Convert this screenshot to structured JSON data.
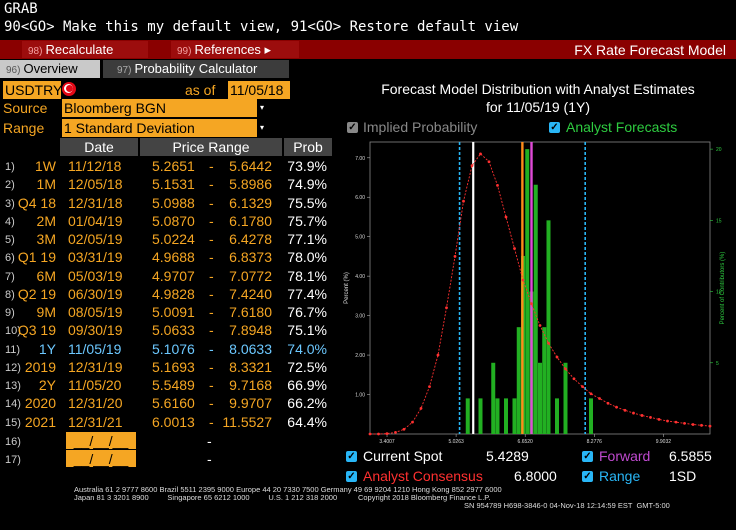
{
  "header": {
    "line1": "GRAB",
    "line2": "90<GO> Make this my default view, 91<GO> Restore default view"
  },
  "toolbar": {
    "recalc_num": "98)",
    "recalc_label": "Recalculate",
    "refs_num": "99)",
    "refs_label": "References ▸",
    "title": "FX Rate Forecast Model"
  },
  "tabs": [
    {
      "num": "96)",
      "label": "Overview"
    },
    {
      "num": "97)",
      "label": "Probability Calculator"
    }
  ],
  "controls": {
    "pair": "USDTRY",
    "as_of_label": "as of",
    "as_of_date": "11/05/18",
    "source_label": "Source",
    "source_value": "Bloomberg BGN",
    "range_label": "Range",
    "range_value": "1 Standard Deviation"
  },
  "table": {
    "headers": [
      "Date",
      "Price Range",
      "Prob"
    ],
    "rows": [
      {
        "idx": "1)",
        "tenor": "1W",
        "date": "11/12/18",
        "low": "5.2651",
        "high": "5.6442",
        "prob": "73.9%"
      },
      {
        "idx": "2)",
        "tenor": "1M",
        "date": "12/05/18",
        "low": "5.1531",
        "high": "5.8986",
        "prob": "74.9%"
      },
      {
        "idx": "3)",
        "tenor": "Q4 18",
        "date": "12/31/18",
        "low": "5.0988",
        "high": "6.1329",
        "prob": "75.5%"
      },
      {
        "idx": "4)",
        "tenor": "2M",
        "date": "01/04/19",
        "low": "5.0870",
        "high": "6.1780",
        "prob": "75.7%"
      },
      {
        "idx": "5)",
        "tenor": "3M",
        "date": "02/05/19",
        "low": "5.0224",
        "high": "6.4278",
        "prob": "77.1%"
      },
      {
        "idx": "6)",
        "tenor": "Q1 19",
        "date": "03/31/19",
        "low": "4.9688",
        "high": "6.8373",
        "prob": "78.0%"
      },
      {
        "idx": "7)",
        "tenor": "6M",
        "date": "05/03/19",
        "low": "4.9707",
        "high": "7.0772",
        "prob": "78.1%"
      },
      {
        "idx": "8)",
        "tenor": "Q2 19",
        "date": "06/30/19",
        "low": "4.9828",
        "high": "7.4240",
        "prob": "77.4%"
      },
      {
        "idx": "9)",
        "tenor": "9M",
        "date": "08/05/19",
        "low": "5.0091",
        "high": "7.6180",
        "prob": "76.7%"
      },
      {
        "idx": "10)",
        "tenor": "Q3 19",
        "date": "09/30/19",
        "low": "5.0633",
        "high": "7.8948",
        "prob": "75.1%"
      },
      {
        "idx": "11)",
        "tenor": "1Y",
        "date": "11/05/19",
        "low": "5.1076",
        "high": "8.0633",
        "prob": "74.0%",
        "highlight": true
      },
      {
        "idx": "12)",
        "tenor": "2019",
        "date": "12/31/19",
        "low": "5.1693",
        "high": "8.3321",
        "prob": "72.5%"
      },
      {
        "idx": "13)",
        "tenor": "2Y",
        "date": "11/05/20",
        "low": "5.5489",
        "high": "9.7168",
        "prob": "66.9%"
      },
      {
        "idx": "14)",
        "tenor": "2020",
        "date": "12/31/20",
        "low": "5.6160",
        "high": "9.9707",
        "prob": "66.2%"
      },
      {
        "idx": "15)",
        "tenor": "2021",
        "date": "12/31/21",
        "low": "6.0013",
        "high": "11.5527",
        "prob": "64.4%"
      }
    ],
    "blank_rows": [
      {
        "idx": "16)",
        "date": "__/__/__",
        "range": "-"
      },
      {
        "idx": "17)",
        "date": "__/__/__",
        "range": "-"
      }
    ]
  },
  "chart_legend": {
    "implied": "Implied Probability",
    "analyst": "Analyst Forecasts",
    "spot_label": "Current Spot",
    "spot_value": "5.4289",
    "forward_label": "Forward",
    "forward_value": "6.5855",
    "consensus_label": "Analyst Consensus",
    "consensus_value": "6.8000",
    "range_label": "Range",
    "range_value": "1SD",
    "colors": {
      "spot": "#ffffff",
      "forward": "#ff8c1a",
      "consensus": "#e04bd8",
      "range": "#29b6f6",
      "implied": "#ff3030",
      "analyst": "#22b022"
    }
  },
  "chart_data": {
    "type": "line",
    "title": "Forecast Model Distribution with Analyst Estimates",
    "subtitle": "for  11/05/19 (1Y)",
    "ylabel": "Percent (%)",
    "y2label": "Percent of Contributors (%)",
    "xlim": [
      3.0,
      11.0
    ],
    "ylim": [
      0,
      7.4
    ],
    "y2lim": [
      0,
      20.5
    ],
    "x_ticks": [
      "3.4007",
      "5.0263",
      "6.6520",
      "8.2776",
      "9.9032"
    ],
    "x_tick_values": [
      3.4007,
      5.0263,
      6.652,
      8.2776,
      9.9032
    ],
    "y_ticks": [
      "1.00",
      "2.00",
      "3.00",
      "4.00",
      "5.00",
      "6.00",
      "7.00"
    ],
    "y2_ticks": [
      "5",
      "10",
      "15",
      "20"
    ],
    "series": [
      {
        "name": "Implied Probability",
        "x": [
          3.0,
          3.2,
          3.4,
          3.6,
          3.8,
          4.0,
          4.2,
          4.4,
          4.6,
          4.8,
          5.0,
          5.2,
          5.4,
          5.6,
          5.8,
          6.0,
          6.2,
          6.4,
          6.6,
          6.8,
          7.0,
          7.2,
          7.4,
          7.6,
          7.8,
          8.0,
          8.2,
          8.4,
          8.6,
          8.8,
          9.0,
          9.2,
          9.4,
          9.6,
          9.8,
          10.0,
          10.2,
          10.4,
          10.6,
          10.8,
          11.0
        ],
        "y": [
          0.0,
          0.0,
          0.01,
          0.04,
          0.12,
          0.3,
          0.65,
          1.2,
          2.0,
          3.2,
          4.5,
          5.9,
          6.8,
          7.1,
          6.9,
          6.3,
          5.5,
          4.7,
          3.9,
          3.3,
          2.75,
          2.3,
          1.95,
          1.65,
          1.4,
          1.2,
          1.02,
          0.9,
          0.78,
          0.68,
          0.6,
          0.53,
          0.47,
          0.42,
          0.37,
          0.33,
          0.3,
          0.27,
          0.24,
          0.22,
          0.2
        ]
      },
      {
        "name": "Analyst Forecasts",
        "bars_x": [
          5.3,
          5.6,
          5.9,
          6.0,
          6.2,
          6.4,
          6.5,
          6.6,
          6.7,
          6.8,
          6.9,
          7.0,
          7.1,
          7.2,
          7.4,
          7.6,
          8.2
        ],
        "bars_pct": [
          2.5,
          2.5,
          5,
          2.5,
          2.5,
          2.5,
          7.5,
          12.5,
          20,
          10,
          17.5,
          5,
          7.5,
          15,
          2.5,
          5,
          2.5
        ]
      }
    ],
    "markers": {
      "spot": 5.4289,
      "forward": 6.5855,
      "consensus": 6.8,
      "range_low": 5.1076,
      "range_high": 8.0633
    }
  },
  "footer": {
    "line1": "Australia 61 2 9777 8600 Brazil 5511 2395 9000 Europe 44 20 7330 7500 Germany 49 69 9204 1210 Hong Kong 852 2977 6000",
    "line2": "Japan 81 3 3201 8900         Singapore 65 6212 1000         U.S. 1 212 318 2000          Copyright 2018 Bloomberg Finance L.P.",
    "line3": "SN 954789 H698-3846-0 04-Nov-18 12:14:59 EST  GMT-5:00"
  }
}
